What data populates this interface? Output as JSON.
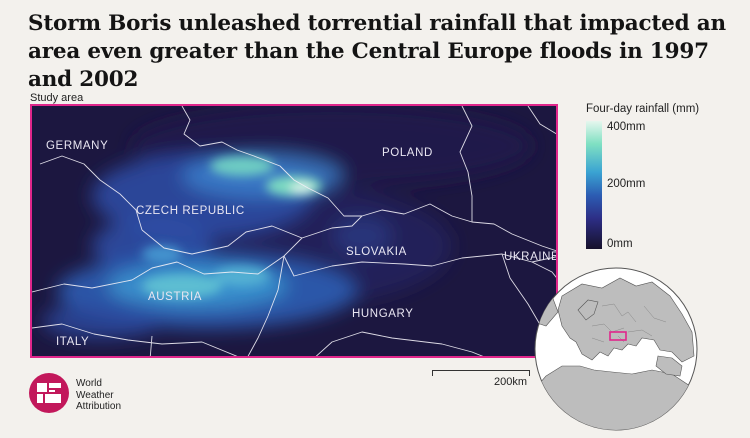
{
  "title": "Storm Boris unleashed torrential rainfall that impacted an area even greater than the Central Europe floods in 1997 and 2002",
  "map": {
    "study_area_label": "Study area",
    "highlight_color": "#e0268b",
    "countries": {
      "germany": "GERMANY",
      "poland": "POLAND",
      "czech": "CZECH REPUBLIC",
      "slovakia": "SLOVAKIA",
      "ukraine": "UKRAINE",
      "austria": "AUSTRIA",
      "hungary": "HUNGARY",
      "italy": "ITALY"
    }
  },
  "legend": {
    "title": "Four-day rainfall (mm)",
    "ticks": [
      "400mm",
      "200mm",
      "0mm"
    ],
    "colors": [
      "#e6f7ee",
      "#7fe0c2",
      "#3aa3d2",
      "#2c5db3",
      "#2d2e86",
      "#16112b"
    ]
  },
  "scale_bar": {
    "label": "200km"
  },
  "brand": {
    "line1": "World",
    "line2": "Weather",
    "line3": "Attribution",
    "color": "#c2185b"
  }
}
